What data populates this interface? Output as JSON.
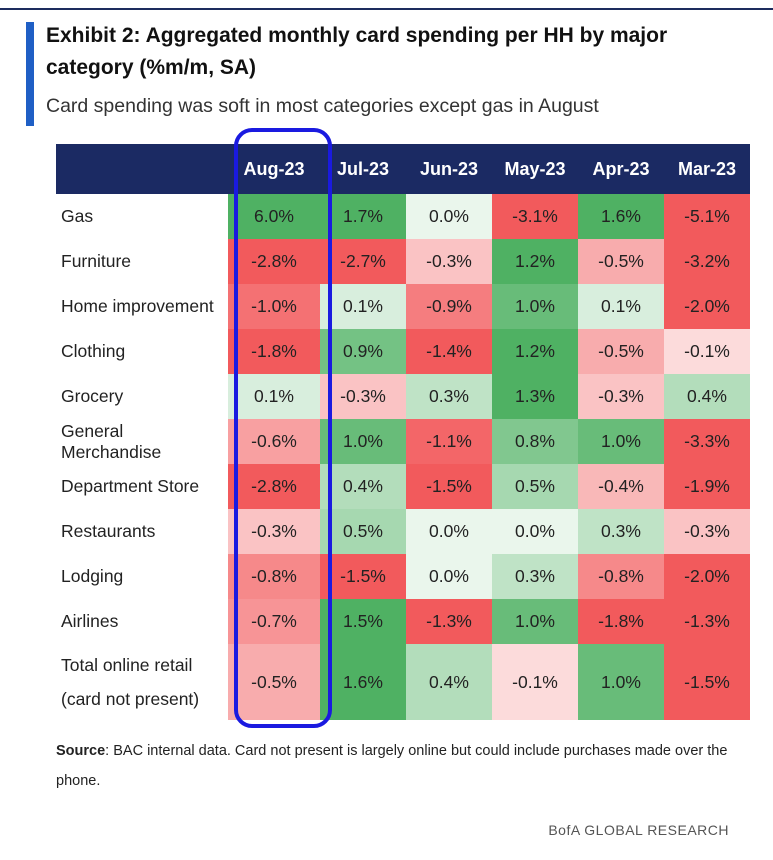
{
  "header": {
    "title": "Exhibit 2: Aggregated monthly card spending per HH by major category (%m/m, SA)",
    "subtitle": "Card spending was soft in most categories except gas in August"
  },
  "chart_data": {
    "type": "table",
    "title": "Exhibit 2: Aggregated monthly card spending per HH by major category (%m/m, SA)",
    "columns": [
      "Aug-23",
      "Jul-23",
      "Jun-23",
      "May-23",
      "Apr-23",
      "Mar-23"
    ],
    "highlighted_column": "Aug-23",
    "rows": [
      {
        "label": "Gas",
        "values": [
          6.0,
          1.7,
          0.0,
          -3.1,
          1.6,
          -5.1
        ],
        "display": [
          "6.0%",
          "1.7%",
          "0.0%",
          "-3.1%",
          "1.6%",
          "-5.1%"
        ]
      },
      {
        "label": "Furniture",
        "values": [
          -2.8,
          -2.7,
          -0.3,
          1.2,
          -0.5,
          -3.2
        ],
        "display": [
          "-2.8%",
          "-2.7%",
          "-0.3%",
          "1.2%",
          "-0.5%",
          "-3.2%"
        ]
      },
      {
        "label": "Home improvement",
        "values": [
          -1.0,
          0.1,
          -0.9,
          1.0,
          0.1,
          -2.0
        ],
        "display": [
          "-1.0%",
          "0.1%",
          "-0.9%",
          "1.0%",
          "0.1%",
          "-2.0%"
        ]
      },
      {
        "label": "Clothing",
        "values": [
          -1.8,
          0.9,
          -1.4,
          1.2,
          -0.5,
          -0.1
        ],
        "display": [
          "-1.8%",
          "0.9%",
          "-1.4%",
          "1.2%",
          "-0.5%",
          "-0.1%"
        ]
      },
      {
        "label": "Grocery",
        "values": [
          0.1,
          -0.3,
          0.3,
          1.3,
          -0.3,
          0.4
        ],
        "display": [
          "0.1%",
          "-0.3%",
          "0.3%",
          "1.3%",
          "-0.3%",
          "0.4%"
        ]
      },
      {
        "label": "General Merchandise",
        "values": [
          -0.6,
          1.0,
          -1.1,
          0.8,
          1.0,
          -3.3
        ],
        "display": [
          "-0.6%",
          "1.0%",
          "-1.1%",
          "0.8%",
          "1.0%",
          "-3.3%"
        ]
      },
      {
        "label": "Department Store",
        "values": [
          -2.8,
          0.4,
          -1.5,
          0.5,
          -0.4,
          -1.9
        ],
        "display": [
          "-2.8%",
          "0.4%",
          "-1.5%",
          "0.5%",
          "-0.4%",
          "-1.9%"
        ]
      },
      {
        "label": "Restaurants",
        "values": [
          -0.3,
          0.5,
          0.0,
          0.0,
          0.3,
          -0.3
        ],
        "display": [
          "-0.3%",
          "0.5%",
          "0.0%",
          "0.0%",
          "0.3%",
          "-0.3%"
        ]
      },
      {
        "label": "Lodging",
        "values": [
          -0.8,
          -1.5,
          0.0,
          0.3,
          -0.8,
          -2.0
        ],
        "display": [
          "-0.8%",
          "-1.5%",
          "0.0%",
          "0.3%",
          "-0.8%",
          "-2.0%"
        ]
      },
      {
        "label": "Airlines",
        "values": [
          -0.7,
          1.5,
          -1.3,
          1.0,
          -1.8,
          -1.3
        ],
        "display": [
          "-0.7%",
          "1.5%",
          "-1.3%",
          "1.0%",
          "-1.8%",
          "-1.3%"
        ]
      },
      {
        "label_lines": [
          "Total online retail",
          "(card not present)"
        ],
        "values": [
          -0.5,
          1.6,
          0.4,
          -0.1,
          1.0,
          -1.5
        ],
        "display": [
          "-0.5%",
          "1.6%",
          "0.4%",
          "-0.1%",
          "1.0%",
          "-1.5%"
        ]
      }
    ]
  },
  "colors": {
    "header_bg": "#1b2a63",
    "title_accent": "#1f5fc5",
    "highlight_border": "#1a1ae0",
    "positive_max": "#4fb163",
    "negative_max": "#f25a5c",
    "neutral": "#ffffff"
  },
  "source": {
    "label": "Source",
    "text": ": BAC internal data. Card not present is largely online but could include purchases made over the phone."
  },
  "footer": "BofA GLOBAL RESEARCH"
}
